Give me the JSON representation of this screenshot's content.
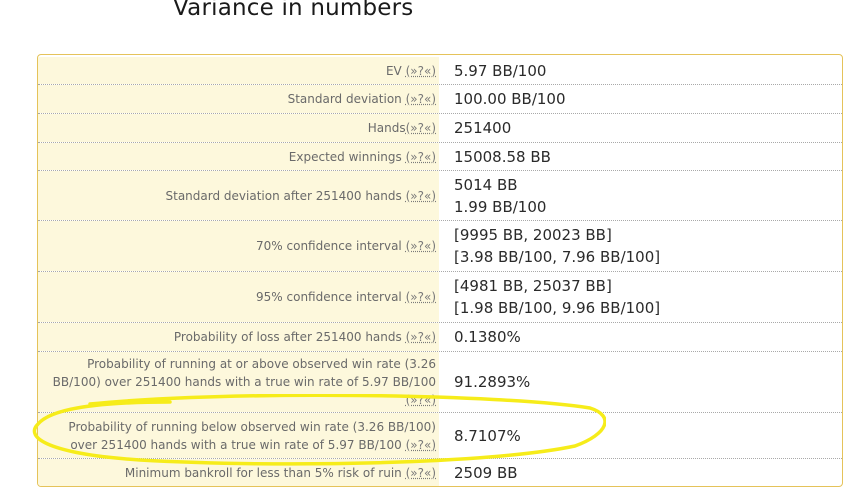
{
  "title": "Variance in numbers",
  "help_label": "(»?«)",
  "rows": [
    {
      "label": "EV ",
      "values": [
        "5.97 BB/100"
      ]
    },
    {
      "label": "Standard deviation ",
      "values": [
        "100.00 BB/100"
      ]
    },
    {
      "label": "Hands",
      "values": [
        "251400"
      ]
    },
    {
      "label": "Expected winnings ",
      "values": [
        "15008.58 BB"
      ]
    },
    {
      "label": "Standard deviation after 251400 hands ",
      "values": [
        "5014 BB",
        "1.99 BB/100"
      ]
    },
    {
      "label": "70% confidence interval ",
      "values": [
        "[9995 BB, 20023 BB]",
        "[3.98 BB/100, 7.96 BB/100]"
      ]
    },
    {
      "label": "95% confidence interval ",
      "values": [
        "[4981 BB, 25037 BB]",
        "[1.98 BB/100, 9.96 BB/100]"
      ]
    },
    {
      "label": "Probability of loss after 251400 hands ",
      "values": [
        "0.1380%"
      ]
    },
    {
      "label": "Probability of running at or above observed win rate (3.26 BB/100) over 251400 hands with a true win rate of 5.97 BB/100 ",
      "values": [
        "91.2893%"
      ]
    },
    {
      "label": "Probability of running below observed win rate (3.26 BB/100) over 251400 hands with a true win rate of 5.97 BB/100 ",
      "values": [
        "8.7107%"
      ]
    },
    {
      "label": "Minimum bankroll for less than 5% risk of ruin ",
      "values": [
        "2509 BB"
      ]
    }
  ],
  "colors": {
    "highlight": "#f6ec1a",
    "panel_border": "#e5c35a",
    "label_bg": "#fdf8dc"
  }
}
